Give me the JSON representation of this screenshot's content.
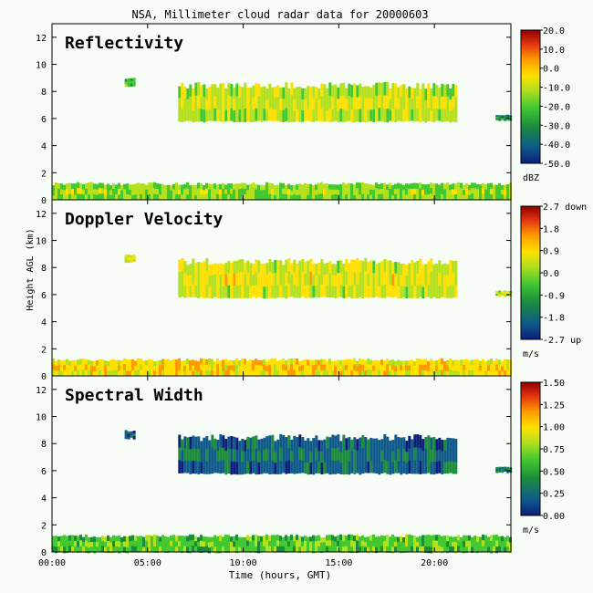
{
  "title": "NSA, Millimeter cloud radar data for 20000603",
  "chart_data": [
    {
      "type": "heatmap",
      "panel_label": "Reflectivity",
      "ylabel": "",
      "yticks": [
        "0",
        "2",
        "4",
        "6",
        "8",
        "10",
        "12"
      ],
      "ylim": [
        0,
        13
      ],
      "colorbar": {
        "ticks": [
          "20.0",
          "10.0",
          "0.0",
          "-10.0",
          "-20.0",
          "-30.0",
          "-40.0",
          "-50.0"
        ],
        "unit": "dBZ"
      },
      "cloud_bands": [
        {
          "x": [
            0.0,
            24.0
          ],
          "y": [
            0.0,
            1.3
          ],
          "value": -20.0
        },
        {
          "x": [
            3.8,
            4.3
          ],
          "y": [
            8.4,
            9.0
          ],
          "value": -25.0
        },
        {
          "x": [
            6.6,
            21.2
          ],
          "y": [
            5.8,
            8.7
          ],
          "value": -15.0
        },
        {
          "x": [
            23.2,
            24.0
          ],
          "y": [
            5.9,
            6.3
          ],
          "value": -35.0
        }
      ],
      "color_stops": [
        "#0b2a8a",
        "#1f7a3a",
        "#3cc83c",
        "#b8e020",
        "#ffd400",
        "#ff8000",
        "#d82010",
        "#8e0000"
      ]
    },
    {
      "type": "heatmap",
      "panel_label": "Doppler Velocity",
      "ylabel": "Height AGL (km)",
      "yticks": [
        "0",
        "2",
        "4",
        "6",
        "8",
        "10",
        "12"
      ],
      "ylim": [
        0,
        13
      ],
      "colorbar": {
        "ticks": [
          "2.7 down",
          "1.8",
          "0.9",
          "0.0",
          "-0.9",
          "-1.8",
          "-2.7 up"
        ],
        "unit": "m/s"
      },
      "cloud_bands": [
        {
          "x": [
            0.0,
            24.0
          ],
          "y": [
            0.0,
            1.3
          ],
          "value": 0.6
        },
        {
          "x": [
            3.8,
            4.3
          ],
          "y": [
            8.4,
            9.0
          ],
          "value": 0.3
        },
        {
          "x": [
            6.6,
            21.2
          ],
          "y": [
            5.8,
            8.7
          ],
          "value": 0.2
        },
        {
          "x": [
            23.2,
            24.0
          ],
          "y": [
            5.9,
            6.3
          ],
          "value": 0.1
        }
      ],
      "color_stops": [
        "#0b2a8a",
        "#1f7a3a",
        "#3cc83c",
        "#b8e020",
        "#ffd400",
        "#ff8000",
        "#d82010",
        "#8e0000"
      ]
    },
    {
      "type": "heatmap",
      "panel_label": "Spectral Width",
      "ylabel": "",
      "yticks": [
        "0",
        "2",
        "4",
        "6",
        "8",
        "10",
        "12"
      ],
      "ylim": [
        0,
        13
      ],
      "colorbar": {
        "ticks": [
          "1.50",
          "1.25",
          "1.00",
          "0.75",
          "0.50",
          "0.25",
          "0.00"
        ],
        "unit": "m/s"
      },
      "cloud_bands": [
        {
          "x": [
            0.0,
            24.0
          ],
          "y": [
            0.0,
            1.3
          ],
          "value": 0.55
        },
        {
          "x": [
            3.8,
            4.3
          ],
          "y": [
            8.4,
            9.0
          ],
          "value": 0.15
        },
        {
          "x": [
            6.6,
            21.2
          ],
          "y": [
            5.8,
            8.7
          ],
          "value": 0.2
        },
        {
          "x": [
            23.2,
            24.0
          ],
          "y": [
            5.9,
            6.3
          ],
          "value": 0.25
        }
      ],
      "color_stops": [
        "#0b2a8a",
        "#1f7a3a",
        "#3cc83c",
        "#b8e020",
        "#ffd400",
        "#ff8000",
        "#d82010",
        "#8e0000"
      ]
    }
  ],
  "xaxis": {
    "label": "Time (hours, GMT)",
    "ticks": [
      "00:00",
      "05:00",
      "10:00",
      "15:00",
      "20:00"
    ],
    "tick_hours": [
      0,
      5,
      10,
      15,
      20
    ],
    "xlim": [
      0,
      24
    ]
  }
}
